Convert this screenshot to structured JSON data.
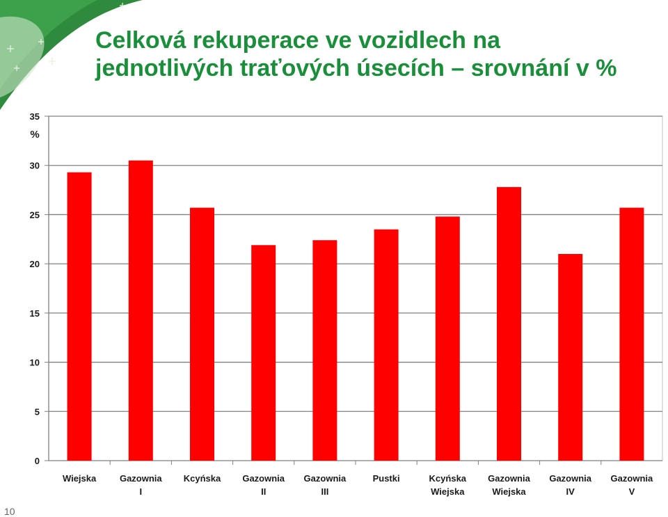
{
  "title": {
    "line1": "Celková rekuperace ve vozidlech na",
    "line2": "jednotlivých traťových úsecích – srovnání v %"
  },
  "page_number": "10",
  "colors": {
    "bar": "#ff0000",
    "title": "#1a8f3a",
    "grid": "#7f7f7f"
  },
  "chart_data": {
    "type": "bar",
    "categories": [
      [
        "Wiejska"
      ],
      [
        "Gazownia",
        "I"
      ],
      [
        "Kcyńska"
      ],
      [
        "Gazownia",
        "II"
      ],
      [
        "Gazownia",
        "III"
      ],
      [
        "Pustki"
      ],
      [
        "Kcyńska",
        "Wiejska"
      ],
      [
        "Gazownia",
        "Wiejska"
      ],
      [
        "Gazownia",
        "IV"
      ],
      [
        "Gazownia",
        "V"
      ]
    ],
    "values": [
      29.3,
      30.5,
      25.7,
      21.9,
      22.4,
      23.5,
      24.8,
      27.8,
      21.0,
      25.7
    ],
    "ylabel": "%",
    "ylim": [
      0,
      35
    ],
    "yticks": [
      "0",
      "5",
      "10",
      "15",
      "20",
      "25",
      "30",
      "35"
    ],
    "grid": true,
    "legend": "none"
  }
}
